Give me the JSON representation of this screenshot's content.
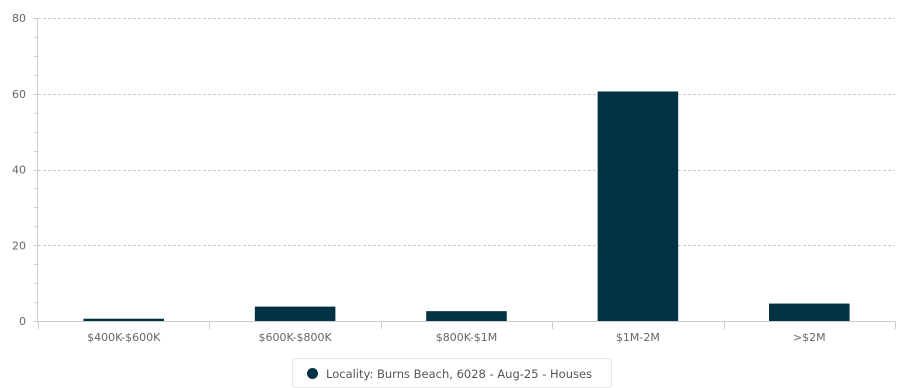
{
  "chart_data": {
    "type": "bar",
    "categories": [
      "$400K-$600K",
      "$600K-$800K",
      "$800K-$1M",
      "$1M-2M",
      ">$2M"
    ],
    "series": [
      {
        "name": "Locality: Burns Beach, 6028 - Aug-25 - Houses",
        "values": [
          0.6,
          3.8,
          2.6,
          60.6,
          4.6
        ],
        "color": "#023243"
      }
    ],
    "ylim": [
      0,
      80
    ],
    "yticks": [
      0,
      20,
      40,
      60,
      80
    ],
    "grid": true,
    "legend_position": "bottom-center"
  }
}
